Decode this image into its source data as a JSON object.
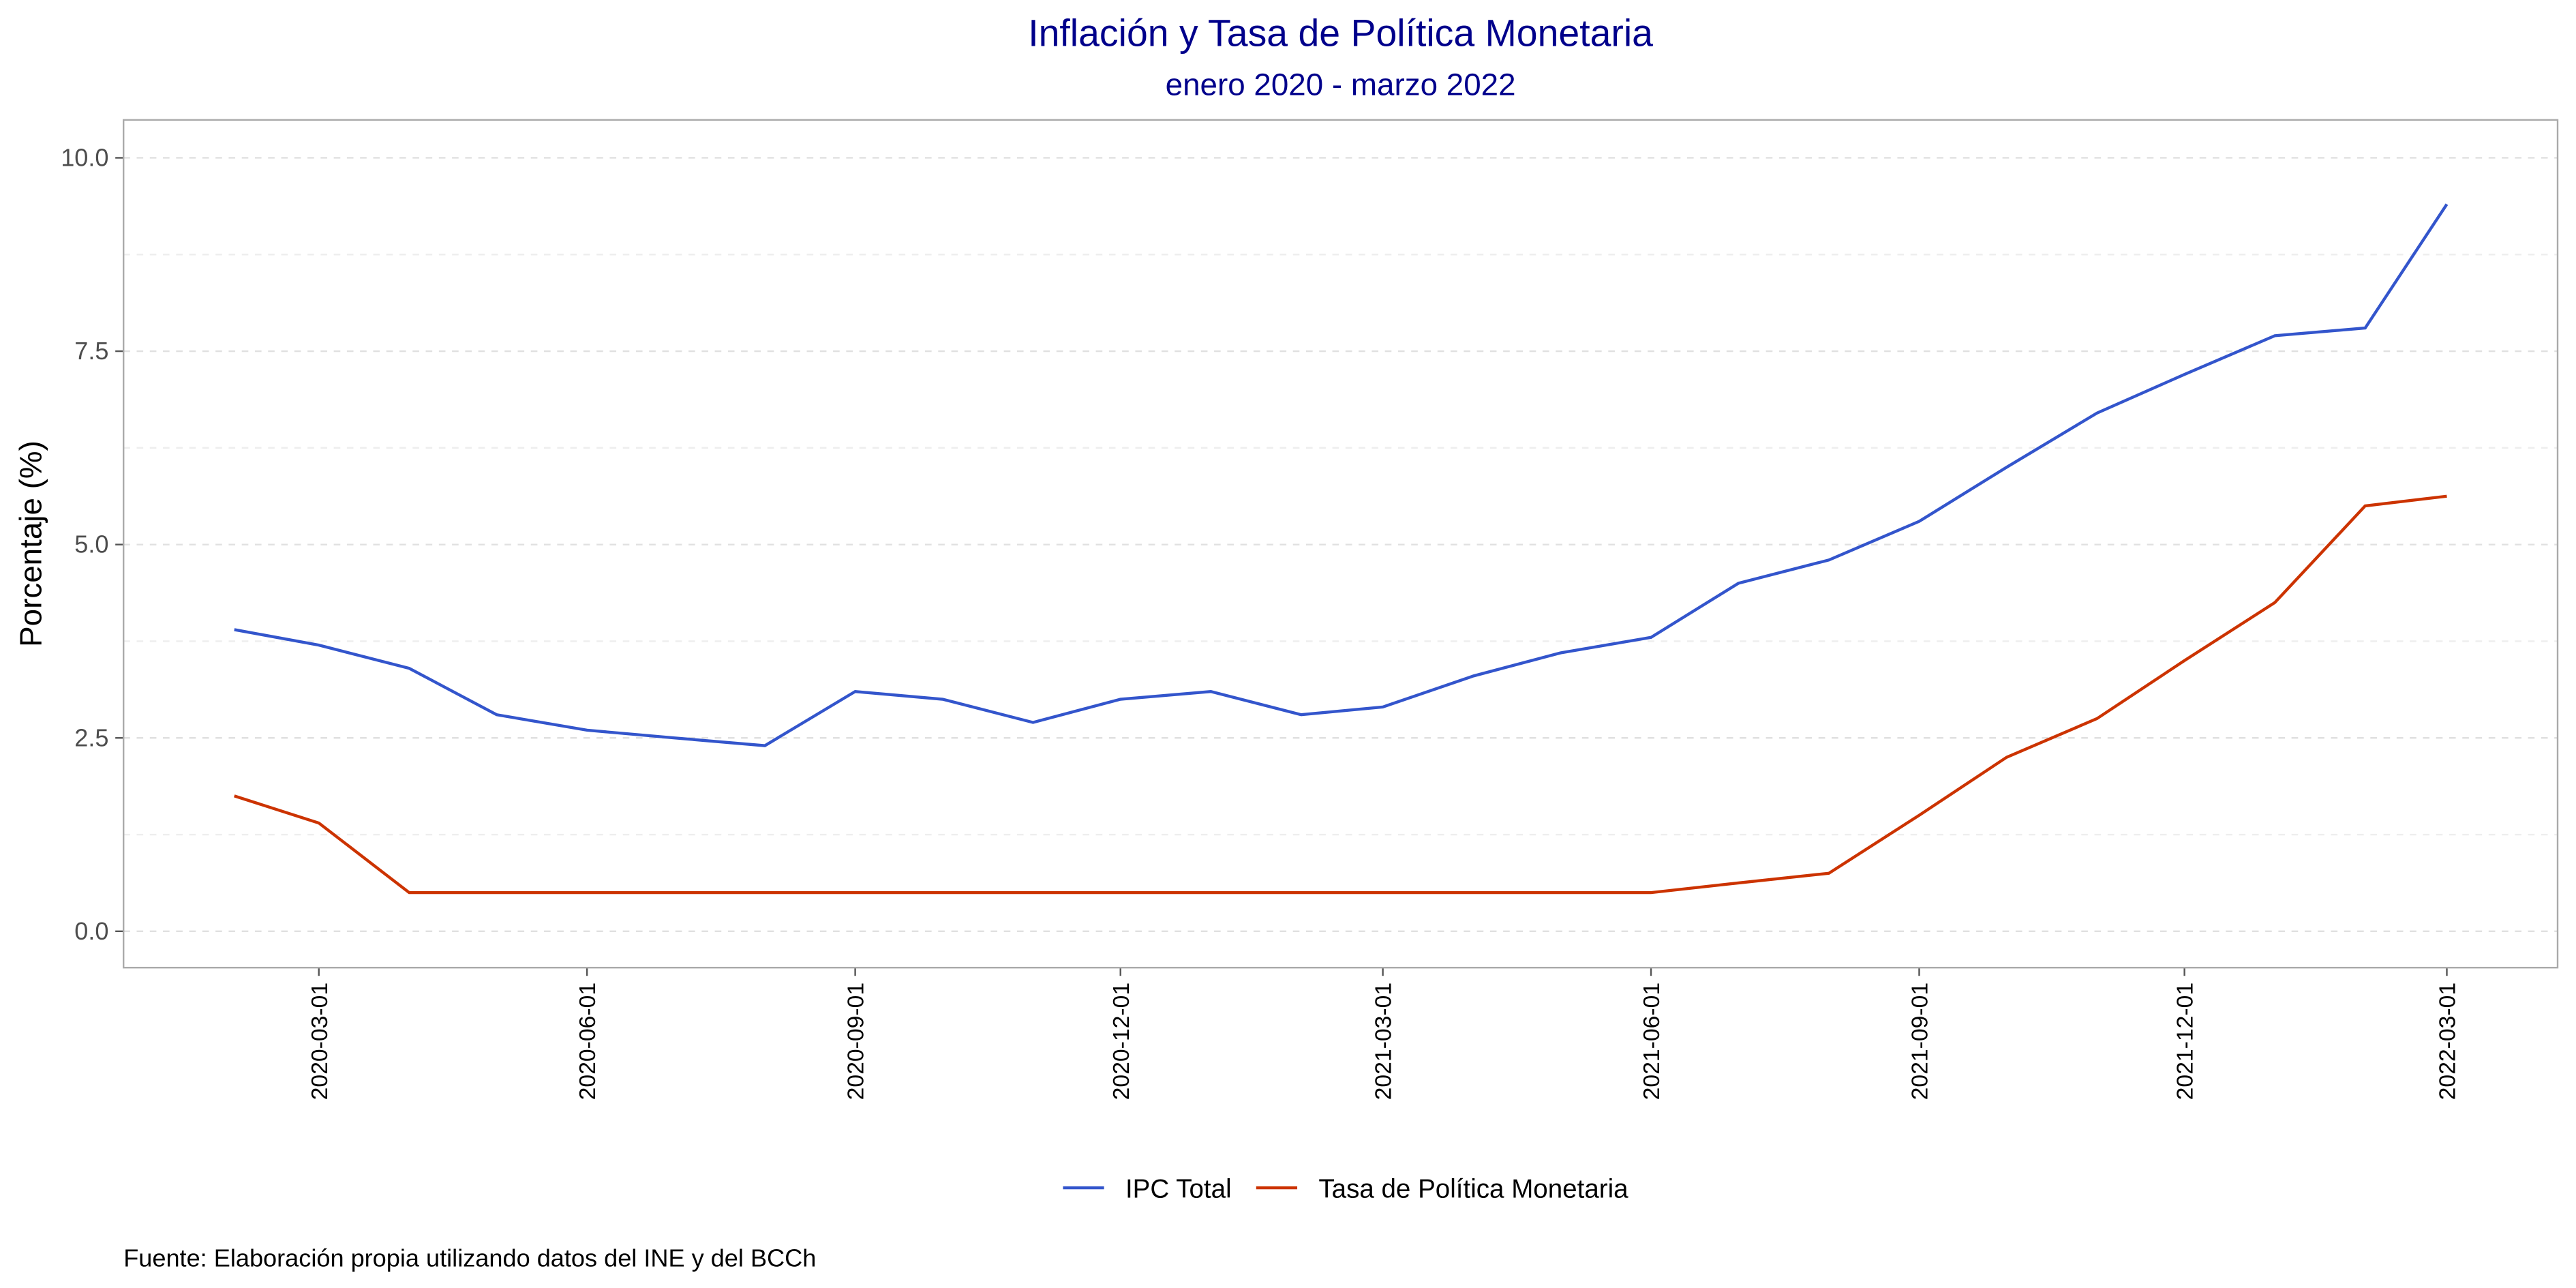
{
  "chart_data": {
    "type": "line",
    "title": "Inflación y Tasa de Política Monetaria",
    "subtitle": "enero 2020 - marzo 2022",
    "y_label": "Porcentaje (%)",
    "caption": "Fuente: Elaboración propia utilizando datos del INE y del BCCh",
    "x": [
      "2020-02-01",
      "2020-03-01",
      "2020-04-01",
      "2020-05-01",
      "2020-06-01",
      "2020-07-01",
      "2020-08-01",
      "2020-09-01",
      "2020-10-01",
      "2020-11-01",
      "2020-12-01",
      "2021-01-01",
      "2021-02-01",
      "2021-03-01",
      "2021-04-01",
      "2021-05-01",
      "2021-06-01",
      "2021-07-01",
      "2021-08-01",
      "2021-09-01",
      "2021-10-01",
      "2021-11-01",
      "2021-12-01",
      "2022-01-01",
      "2022-02-01",
      "2022-03-01"
    ],
    "series": [
      {
        "name": "IPC Total",
        "color": "#3355cc",
        "values": [
          3.9,
          3.7,
          3.4,
          2.8,
          2.6,
          2.5,
          2.4,
          3.1,
          3.0,
          2.7,
          3.0,
          3.1,
          2.8,
          2.9,
          3.3,
          3.6,
          3.8,
          4.5,
          4.8,
          5.3,
          6.0,
          6.7,
          7.2,
          7.7,
          7.8,
          9.4
        ]
      },
      {
        "name": "Tasa de Política Monetaria",
        "color": "#cc3300",
        "values": [
          1.75,
          1.4,
          0.5,
          0.5,
          0.5,
          0.5,
          0.5,
          0.5,
          0.5,
          0.5,
          0.5,
          0.5,
          0.5,
          0.5,
          0.5,
          0.5,
          0.5,
          0.625,
          0.75,
          1.5,
          2.25,
          2.75,
          3.5,
          4.25,
          5.5,
          5.625
        ]
      }
    ],
    "xlim": [
      "2019-12-25",
      "2022-04-08"
    ],
    "xticks": [
      "2020-03-01",
      "2020-06-01",
      "2020-09-01",
      "2020-12-01",
      "2021-03-01",
      "2021-06-01",
      "2021-09-01",
      "2021-12-01",
      "2022-03-01"
    ],
    "ylim": [
      -0.47,
      10.49
    ],
    "yticks": [
      {
        "value": 0,
        "label": "0.0"
      },
      {
        "value": 2.5,
        "label": "2.5"
      },
      {
        "value": 5,
        "label": "5.0"
      },
      {
        "value": 7.5,
        "label": "7.5"
      },
      {
        "value": 10,
        "label": "10.0"
      }
    ],
    "y_minor_ticks": [
      1.25,
      3.75,
      6.25,
      8.75
    ],
    "grid": true,
    "legend": "bottom"
  }
}
